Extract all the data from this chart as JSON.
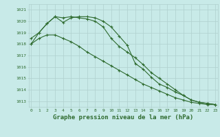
{
  "series1": [
    1018.0,
    1019.0,
    1019.8,
    1020.4,
    1019.9,
    1020.3,
    1020.4,
    1020.4,
    1020.3,
    1020.0,
    1019.5,
    1018.7,
    1017.9,
    1016.3,
    1015.8,
    1015.1,
    1014.5,
    1014.2,
    1013.8,
    1013.5,
    1013.1,
    1012.9,
    1012.8,
    1012.7
  ],
  "series2": [
    1018.5,
    1019.0,
    1019.8,
    1020.4,
    1020.3,
    1020.4,
    1020.3,
    1020.2,
    1020.0,
    1019.5,
    1018.5,
    1017.8,
    1017.3,
    1016.8,
    1016.2,
    1015.5,
    1015.0,
    1014.5,
    1014.0,
    1013.5,
    1013.1,
    1012.9,
    1012.8,
    1012.7
  ],
  "series3": [
    1018.0,
    1018.5,
    1018.8,
    1018.8,
    1018.5,
    1018.2,
    1017.8,
    1017.3,
    1016.9,
    1016.5,
    1016.1,
    1015.7,
    1015.3,
    1014.9,
    1014.5,
    1014.2,
    1013.9,
    1013.6,
    1013.3,
    1013.1,
    1012.9,
    1012.8,
    1012.7,
    1012.7
  ],
  "x": [
    0,
    1,
    2,
    3,
    4,
    5,
    6,
    7,
    8,
    9,
    10,
    11,
    12,
    13,
    14,
    15,
    16,
    17,
    18,
    19,
    20,
    21,
    22,
    23
  ],
  "line_color": "#2d6a2d",
  "bg_color": "#c8eae8",
  "grid_color": "#afd0ce",
  "xlabel": "Graphe pression niveau de la mer (hPa)",
  "ylim": [
    1012.5,
    1021.5
  ],
  "yticks": [
    1013,
    1014,
    1015,
    1016,
    1017,
    1018,
    1019,
    1020,
    1021
  ]
}
